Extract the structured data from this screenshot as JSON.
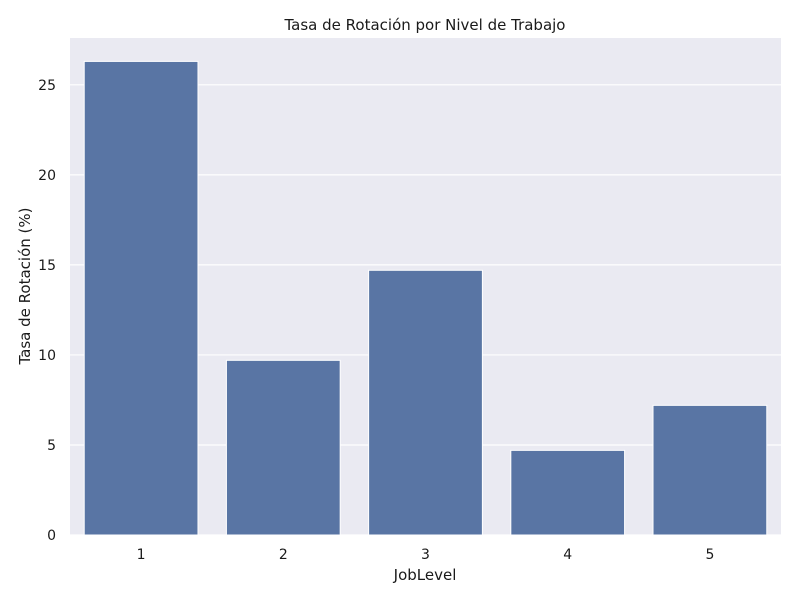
{
  "chart_data": {
    "type": "bar",
    "title": "Tasa de Rotación por Nivel de Trabajo",
    "xlabel": "JobLevel",
    "ylabel": "Tasa de Rotación (%)",
    "categories": [
      "1",
      "2",
      "3",
      "4",
      "5"
    ],
    "values": [
      26.3,
      9.7,
      14.7,
      4.7,
      7.2
    ],
    "ylim": [
      0,
      27.6
    ],
    "yticks": [
      0,
      5,
      10,
      15,
      20,
      25
    ],
    "grid": true,
    "bar_color": "#5975a4",
    "background_color": "#eaeaf2"
  }
}
